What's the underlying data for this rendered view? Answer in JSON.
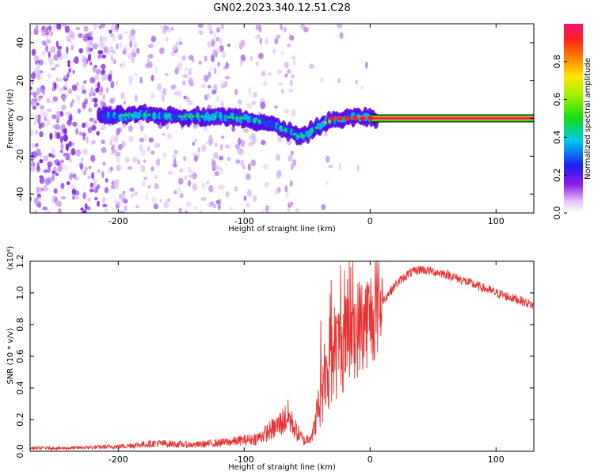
{
  "title": "GN02.2023.340.12.51.C28",
  "chart_data": [
    {
      "type": "heatmap",
      "xlabel": "Height of straight line (km)",
      "ylabel": "Frequency (Hz)",
      "xlim": [
        -270,
        130
      ],
      "ylim": [
        -50,
        50
      ],
      "xticks": [
        -200,
        -100,
        0,
        100
      ],
      "yticks": [
        -40,
        -20,
        0,
        20,
        40
      ],
      "colorbar": {
        "label": "Normalized spectral amplitude",
        "range": [
          0,
          1
        ],
        "ticks": [
          "0.0",
          "0.2",
          "0.4",
          "0.6",
          "0.8"
        ]
      },
      "ridge_track": [
        {
          "x": -210,
          "y": 1
        },
        {
          "x": -180,
          "y": 2
        },
        {
          "x": -150,
          "y": 1
        },
        {
          "x": -120,
          "y": 1
        },
        {
          "x": -100,
          "y": 0
        },
        {
          "x": -85,
          "y": -2
        },
        {
          "x": -70,
          "y": -5
        },
        {
          "x": -55,
          "y": -10
        },
        {
          "x": -45,
          "y": -6
        },
        {
          "x": -35,
          "y": -2
        },
        {
          "x": -20,
          "y": 0
        },
        {
          "x": -5,
          "y": 1
        },
        {
          "x": 5,
          "y": 0
        },
        {
          "x": 130,
          "y": 0
        }
      ]
    },
    {
      "type": "line",
      "xlabel": "Height of straight line (km)",
      "ylabel": "SNR (10 * v/v)",
      "yscale_label": "(x10⁴)",
      "xlim": [
        -270,
        130
      ],
      "ylim": [
        0,
        1.2
      ],
      "xticks": [
        -200,
        -100,
        0,
        100
      ],
      "yticks": [
        "0.0",
        "0.2",
        "0.4",
        "0.6",
        "0.8",
        "1.0",
        "1.2"
      ],
      "color": "#e83232",
      "envelope": [
        {
          "x": -270,
          "y": 0.02
        },
        {
          "x": -240,
          "y": 0.02
        },
        {
          "x": -200,
          "y": 0.03
        },
        {
          "x": -170,
          "y": 0.05
        },
        {
          "x": -140,
          "y": 0.04
        },
        {
          "x": -110,
          "y": 0.06
        },
        {
          "x": -90,
          "y": 0.08
        },
        {
          "x": -75,
          "y": 0.15
        },
        {
          "x": -65,
          "y": 0.22
        },
        {
          "x": -58,
          "y": 0.12
        },
        {
          "x": -52,
          "y": 0.06
        },
        {
          "x": -45,
          "y": 0.12
        },
        {
          "x": -37,
          "y": 0.45
        },
        {
          "x": -30,
          "y": 0.6
        },
        {
          "x": -20,
          "y": 0.7
        },
        {
          "x": -10,
          "y": 0.78
        },
        {
          "x": 0,
          "y": 0.85
        },
        {
          "x": 10,
          "y": 0.95
        },
        {
          "x": 20,
          "y": 1.05
        },
        {
          "x": 30,
          "y": 1.12
        },
        {
          "x": 40,
          "y": 1.15
        },
        {
          "x": 60,
          "y": 1.12
        },
        {
          "x": 80,
          "y": 1.06
        },
        {
          "x": 100,
          "y": 1.0
        },
        {
          "x": 120,
          "y": 0.95
        },
        {
          "x": 130,
          "y": 0.92
        }
      ]
    }
  ]
}
